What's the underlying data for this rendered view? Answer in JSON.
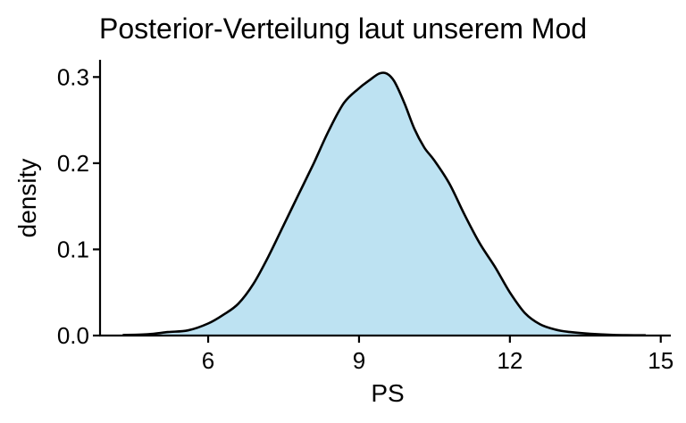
{
  "chart_data": {
    "type": "area",
    "title": "Posterior-Verteilung laut unserem Mod",
    "xlabel": "PS",
    "ylabel": "density",
    "xlim": [
      3.85,
      15.2
    ],
    "ylim": [
      0,
      0.32
    ],
    "x_ticks": [
      6,
      9,
      12,
      15
    ],
    "x_tick_labels": [
      "6",
      "9",
      "12",
      "15"
    ],
    "y_ticks": [
      0.0,
      0.1,
      0.2,
      0.3
    ],
    "y_tick_labels": [
      "0.0",
      "0.1",
      "0.2",
      "0.3"
    ],
    "grid": false,
    "legend": "none",
    "fill_color": "#bde2f2",
    "line_color": "#000000",
    "series": [
      {
        "x": [
          4.3,
          4.8,
          5.2,
          5.6,
          6.0,
          6.3,
          6.6,
          6.9,
          7.2,
          7.5,
          7.8,
          8.1,
          8.4,
          8.7,
          9.0,
          9.2,
          9.4,
          9.55,
          9.7,
          9.9,
          10.1,
          10.3,
          10.5,
          10.8,
          11.1,
          11.4,
          11.7,
          12.0,
          12.3,
          12.6,
          12.9,
          13.2,
          13.6,
          14.0,
          14.3,
          14.7
        ],
        "y": [
          0.0005,
          0.0015,
          0.004,
          0.006,
          0.014,
          0.024,
          0.037,
          0.06,
          0.092,
          0.128,
          0.164,
          0.2,
          0.238,
          0.27,
          0.287,
          0.296,
          0.304,
          0.304,
          0.295,
          0.27,
          0.24,
          0.218,
          0.203,
          0.176,
          0.14,
          0.107,
          0.08,
          0.05,
          0.026,
          0.013,
          0.007,
          0.004,
          0.002,
          0.0008,
          0.0004,
          0.0003
        ]
      }
    ]
  }
}
